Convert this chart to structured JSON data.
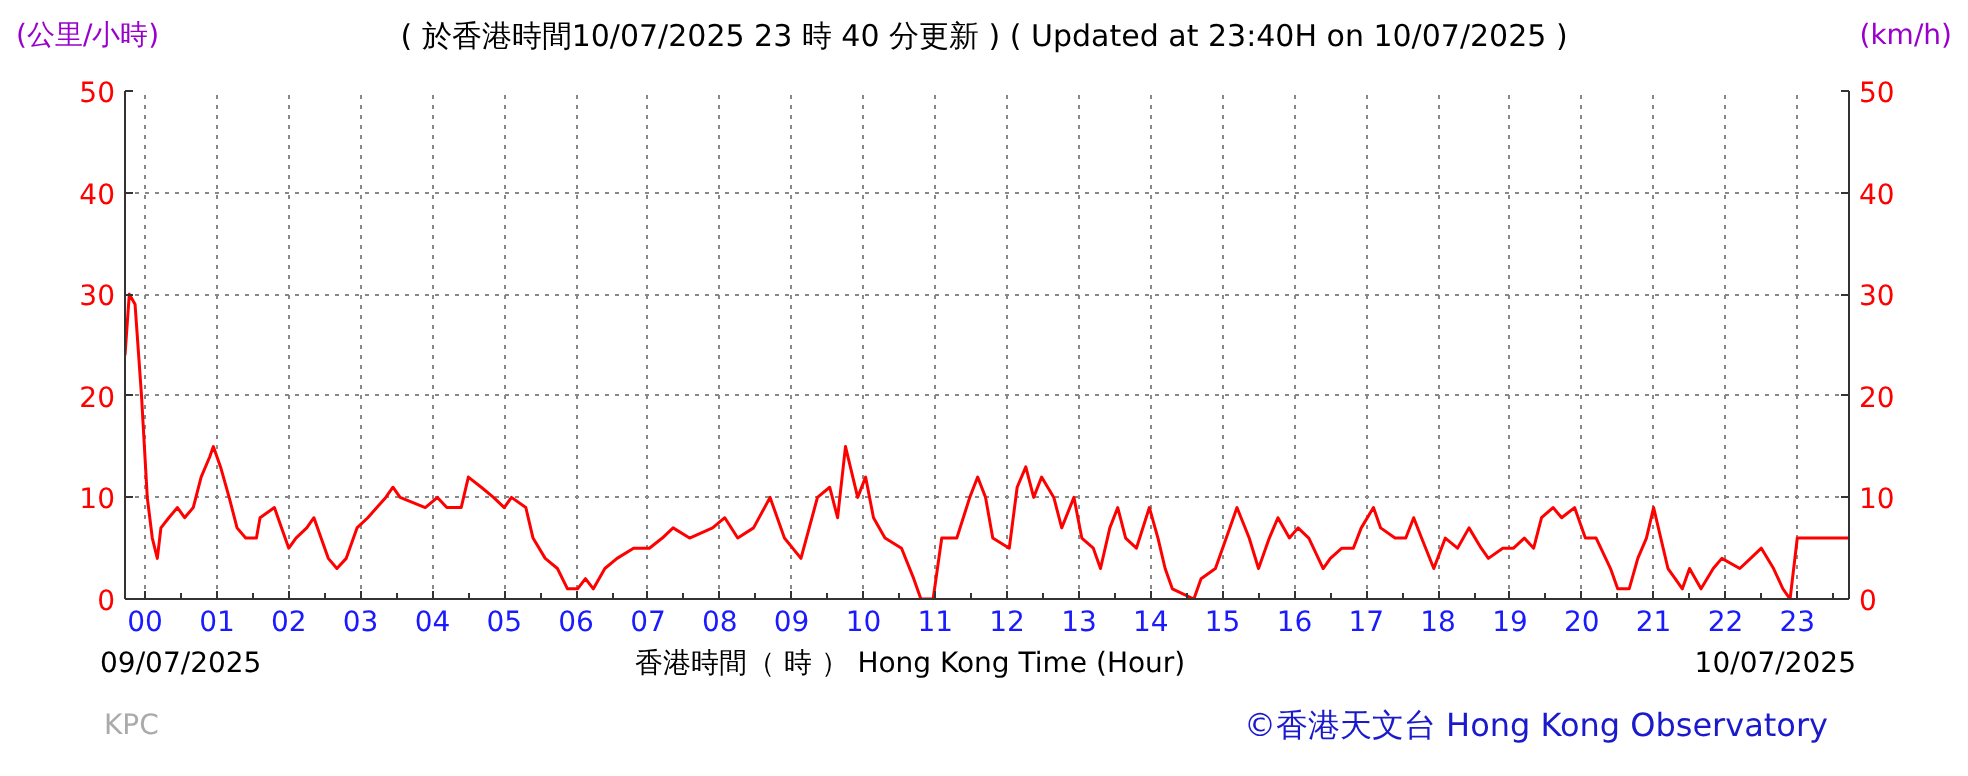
{
  "chart_data": {
    "type": "line",
    "title": "( 於香港時間10/07/2025 23 時 40 分更新 ) ( Updated at 23:40H on 10/07/2025 )",
    "xlabel": "香港時間（ 時 ） Hong Kong Time (Hour)",
    "ylabel": "(公里/小時)",
    "y2label": "(km/h)",
    "annotations": [
      "09/07/2025",
      "10/07/2025",
      "KPC",
      "©香港天文台 Hong Kong Observatory"
    ],
    "xlim": [
      -0.28,
      23.72
    ],
    "xticks": [
      {
        "value": 0,
        "label": "00"
      },
      {
        "value": 1,
        "label": "01"
      },
      {
        "value": 2,
        "label": "02"
      },
      {
        "value": 3,
        "label": "03"
      },
      {
        "value": 4,
        "label": "04"
      },
      {
        "value": 5,
        "label": "05"
      },
      {
        "value": 6,
        "label": "06"
      },
      {
        "value": 7,
        "label": "07"
      },
      {
        "value": 8,
        "label": "08"
      },
      {
        "value": 9,
        "label": "09"
      },
      {
        "value": 10,
        "label": "10"
      },
      {
        "value": 11,
        "label": "11"
      },
      {
        "value": 12,
        "label": "12"
      },
      {
        "value": 13,
        "label": "13"
      },
      {
        "value": 14,
        "label": "14"
      },
      {
        "value": 15,
        "label": "15"
      },
      {
        "value": 16,
        "label": "16"
      },
      {
        "value": 17,
        "label": "17"
      },
      {
        "value": 18,
        "label": "18"
      },
      {
        "value": 19,
        "label": "19"
      },
      {
        "value": 20,
        "label": "20"
      },
      {
        "value": 21,
        "label": "21"
      },
      {
        "value": 22,
        "label": "22"
      },
      {
        "value": 23,
        "label": "23"
      }
    ],
    "ylim": [
      0,
      50
    ],
    "yticks": [
      0,
      10,
      20,
      30,
      40,
      50
    ],
    "y2lim": [
      0,
      50
    ],
    "y2ticks": [
      0,
      10,
      20,
      30,
      40,
      50
    ],
    "grid": true,
    "line_style": "solid",
    "series": [
      {
        "color": "#ff0000",
        "x": [
          -0.28,
          -0.22,
          -0.14,
          -0.05,
          0.03,
          0.1,
          0.17,
          0.22,
          0.33,
          0.45,
          0.55,
          0.67,
          0.78,
          0.9,
          0.95,
          1.05,
          1.17,
          1.28,
          1.4,
          1.55,
          1.6,
          1.8,
          1.9,
          2.0,
          2.1,
          2.25,
          2.35,
          2.45,
          2.55,
          2.67,
          2.8,
          2.95,
          3.1,
          3.35,
          3.45,
          3.55,
          3.9,
          4.07,
          4.2,
          4.4,
          4.5,
          4.68,
          4.85,
          5.0,
          5.1,
          5.3,
          5.4,
          5.57,
          5.74,
          5.88,
          6.02,
          6.13,
          6.24,
          6.4,
          6.57,
          6.8,
          7.02,
          7.2,
          7.35,
          7.58,
          7.9,
          8.07,
          8.25,
          8.47,
          8.7,
          8.9,
          9.13,
          9.36,
          9.53,
          9.64,
          9.75,
          9.92,
          10.03,
          10.14,
          10.3,
          10.53,
          10.7,
          10.8,
          10.97,
          11.09,
          11.3,
          11.48,
          11.59,
          11.7,
          11.8,
          12.03,
          12.14,
          12.26,
          12.37,
          12.48,
          12.65,
          12.76,
          12.93,
          13.04,
          13.2,
          13.3,
          13.43,
          13.54,
          13.65,
          13.8,
          13.98,
          14.1,
          14.2,
          14.3,
          14.6,
          14.7,
          14.9,
          15.1,
          15.2,
          15.37,
          15.5,
          15.65,
          15.77,
          15.93,
          16.05,
          16.2,
          16.4,
          16.5,
          16.66,
          16.82,
          16.93,
          17.1,
          17.2,
          17.4,
          17.55,
          17.66,
          17.77,
          17.94,
          18.1,
          18.27,
          18.43,
          18.6,
          18.7,
          18.9,
          19.05,
          19.2,
          19.33,
          19.44,
          19.6,
          19.72,
          19.9,
          20.05,
          20.2,
          20.4,
          20.5,
          20.66,
          20.78,
          20.9,
          21.0,
          21.1,
          21.2,
          21.3,
          21.4,
          21.5,
          21.66,
          21.83,
          21.95,
          22.2,
          22.35,
          22.5,
          22.67,
          22.8,
          22.9,
          23.0,
          23.72
        ],
        "values": [
          24,
          30,
          29,
          20,
          10,
          6,
          4,
          7,
          8,
          9,
          8,
          9,
          12,
          14,
          15,
          13,
          10,
          7,
          6,
          6,
          8,
          9,
          7,
          5,
          6,
          7,
          8,
          6,
          4,
          3,
          4,
          7,
          8,
          10,
          11,
          10,
          9,
          10,
          9,
          9,
          12,
          11,
          10,
          9,
          10,
          9,
          6,
          4,
          3,
          1,
          1,
          2,
          1,
          3,
          4,
          5,
          5,
          6,
          7,
          6,
          7,
          8,
          6,
          7,
          10,
          6,
          4,
          10,
          11,
          8,
          15,
          10,
          12,
          8,
          6,
          5,
          2,
          0,
          0,
          6,
          6,
          10,
          12,
          10,
          6,
          5,
          11,
          13,
          10,
          12,
          10,
          7,
          10,
          6,
          5,
          3,
          7,
          9,
          6,
          5,
          9,
          6,
          3,
          1,
          0,
          2,
          3,
          7,
          9,
          6,
          3,
          6,
          8,
          6,
          7,
          6,
          3,
          4,
          5,
          5,
          7,
          9,
          7,
          6,
          6,
          8,
          6,
          3,
          6,
          5,
          7,
          5,
          4,
          5,
          5,
          6,
          5,
          8,
          9,
          8,
          9,
          6,
          6,
          3,
          1,
          1,
          4,
          6,
          9,
          6,
          3,
          2,
          1,
          3,
          1,
          3,
          4,
          3,
          4,
          5,
          3,
          1,
          0,
          6,
          6
        ]
      }
    ]
  }
}
